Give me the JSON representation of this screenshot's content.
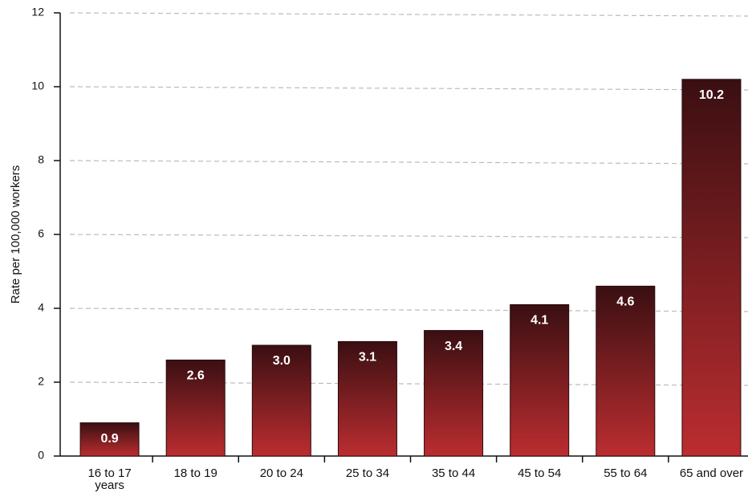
{
  "chart_data": {
    "type": "bar",
    "y_label": "Rate per 100,000 workers",
    "categories": [
      "16 to 17 years",
      "18 to 19",
      "20 to 24",
      "25 to 34",
      "35 to 44",
      "45 to 54",
      "55 to 64",
      "65 and over"
    ],
    "values": [
      0.9,
      2.6,
      3.0,
      3.1,
      3.4,
      4.1,
      4.6,
      10.2
    ],
    "value_labels": [
      "0.9",
      "2.6",
      "3.0",
      "3.1",
      "3.4",
      "4.1",
      "4.6",
      "10.2"
    ],
    "color_top": "#3a0f12",
    "color_bottom": "#bb2d30",
    "ylim": [
      0,
      12
    ],
    "yticks": [
      0,
      2,
      4,
      6,
      8,
      10,
      12
    ],
    "grid": true
  }
}
